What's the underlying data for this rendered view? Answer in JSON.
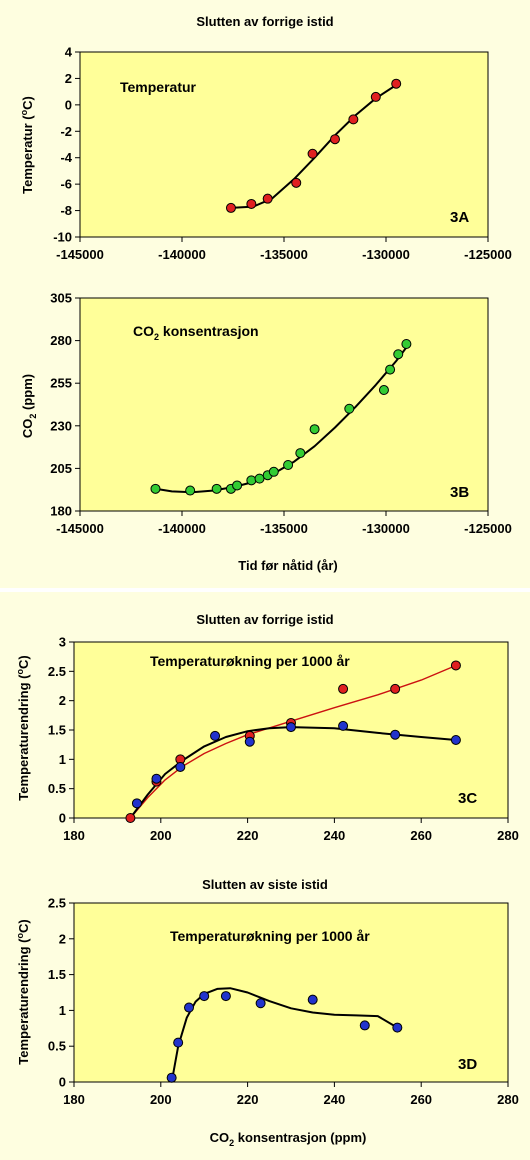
{
  "colors": {
    "background": "#fefee0",
    "plot_bg": "#ffff99",
    "red_point": "#e02020",
    "green_point": "#33cc33",
    "blue_point": "#2233cc",
    "red_line": "#cc1111",
    "black_line": "#000000"
  },
  "top_title": "Slutten av forrige istid",
  "bottom_title_c": "Slutten av forrige istid",
  "bottom_title_d": "Slutten av siste istid",
  "chart_data": [
    {
      "id": "3A",
      "type": "scatter",
      "title": "Slutten av forrige istid",
      "annotation": "Temperatur",
      "panel_label": "3A",
      "ylabel": "Temperatur (°C)",
      "xlabel": "",
      "xlim": [
        -145000,
        -125000
      ],
      "ylim": [
        -10,
        4
      ],
      "xticks": [
        -145000,
        -140000,
        -135000,
        -130000,
        -125000
      ],
      "xtick_labels": [
        "-145000",
        "-140000",
        "-135000",
        "-130000",
        "-125000"
      ],
      "yticks": [
        -10,
        -8,
        -6,
        -4,
        -2,
        0,
        2,
        4
      ],
      "ytick_labels": [
        "-10",
        "-8",
        "-6",
        "-4",
        "-2",
        "0",
        "2",
        "4"
      ],
      "points": [
        [
          -137600,
          -7.8
        ],
        [
          -136600,
          -7.5
        ],
        [
          -135800,
          -7.1
        ],
        [
          -134400,
          -5.9
        ],
        [
          -133600,
          -3.7
        ],
        [
          -132500,
          -2.6
        ],
        [
          -131600,
          -1.1
        ],
        [
          -130500,
          0.6
        ],
        [
          -129500,
          1.6
        ]
      ],
      "fit": [
        [
          -137600,
          -7.8
        ],
        [
          -136500,
          -7.7
        ],
        [
          -135600,
          -7.1
        ],
        [
          -134500,
          -5.6
        ],
        [
          -133500,
          -4.0
        ],
        [
          -132500,
          -2.3
        ],
        [
          -131500,
          -0.8
        ],
        [
          -130500,
          0.5
        ],
        [
          -129500,
          1.5
        ]
      ]
    },
    {
      "id": "3B",
      "type": "scatter",
      "annotation": "CO2 konsentrasjon",
      "panel_label": "3B",
      "ylabel": "CO2 (ppm)",
      "xlabel": "Tid før nåtid (år)",
      "xlim": [
        -145000,
        -125000
      ],
      "ylim": [
        180,
        305
      ],
      "xticks": [
        -145000,
        -140000,
        -135000,
        -130000,
        -125000
      ],
      "xtick_labels": [
        "-145000",
        "-140000",
        "-135000",
        "-130000",
        "-125000"
      ],
      "yticks": [
        180,
        205,
        230,
        255,
        280,
        305
      ],
      "ytick_labels": [
        "180",
        "205",
        "230",
        "255",
        "280",
        "305"
      ],
      "points": [
        [
          -141300,
          193
        ],
        [
          -139600,
          192
        ],
        [
          -138300,
          193
        ],
        [
          -137600,
          193
        ],
        [
          -137300,
          195
        ],
        [
          -136600,
          198
        ],
        [
          -136200,
          199
        ],
        [
          -135800,
          201
        ],
        [
          -135500,
          203
        ],
        [
          -134800,
          207
        ],
        [
          -134200,
          214
        ],
        [
          -133500,
          228
        ],
        [
          -131800,
          240
        ],
        [
          -130100,
          251
        ],
        [
          -129800,
          263
        ],
        [
          -129400,
          272
        ],
        [
          -129000,
          278
        ]
      ],
      "fit": [
        [
          -141300,
          193
        ],
        [
          -140500,
          191.5
        ],
        [
          -139500,
          191
        ],
        [
          -138500,
          192
        ],
        [
          -137500,
          194
        ],
        [
          -136500,
          197
        ],
        [
          -135500,
          202
        ],
        [
          -134500,
          209
        ],
        [
          -133500,
          218
        ],
        [
          -132500,
          229
        ],
        [
          -131500,
          241
        ],
        [
          -130500,
          254
        ],
        [
          -129500,
          268
        ],
        [
          -129000,
          276
        ]
      ]
    },
    {
      "id": "3C",
      "type": "scatter",
      "title": "Slutten av forrige istid",
      "annotation": "Temperaturøkning per 1000 år",
      "panel_label": "3C",
      "ylabel": "Temperaturendring (°C)",
      "xlabel": "",
      "xlim": [
        180,
        280
      ],
      "ylim": [
        0,
        3
      ],
      "xticks": [
        180,
        200,
        220,
        240,
        260,
        280
      ],
      "xtick_labels": [
        "180",
        "200",
        "220",
        "240",
        "260",
        "280"
      ],
      "yticks": [
        0,
        0.5,
        1,
        1.5,
        2,
        2.5,
        3
      ],
      "ytick_labels": [
        "0",
        "0.5",
        "1",
        "1.5",
        "2",
        "2.5",
        "3"
      ],
      "series": [
        {
          "color": "red",
          "points": [
            [
              193,
              0.0
            ],
            [
              199,
              0.62
            ],
            [
              204.5,
              1.0
            ],
            [
              220.5,
              1.4
            ],
            [
              230,
              1.62
            ],
            [
              242,
              2.2
            ],
            [
              254,
              2.2
            ],
            [
              268,
              2.6
            ]
          ],
          "fit": [
            [
              193,
              0.0
            ],
            [
              197,
              0.35
            ],
            [
              201,
              0.65
            ],
            [
              205,
              0.88
            ],
            [
              210,
              1.1
            ],
            [
              215,
              1.27
            ],
            [
              220,
              1.42
            ],
            [
              230,
              1.65
            ],
            [
              240,
              1.88
            ],
            [
              250,
              2.1
            ],
            [
              260,
              2.35
            ],
            [
              268,
              2.6
            ]
          ]
        },
        {
          "color": "blue",
          "points": [
            [
              194.5,
              0.25
            ],
            [
              199,
              0.67
            ],
            [
              204.5,
              0.87
            ],
            [
              212.5,
              1.4
            ],
            [
              220.5,
              1.3
            ],
            [
              230,
              1.55
            ],
            [
              242,
              1.57
            ],
            [
              254,
              1.42
            ],
            [
              268,
              1.33
            ]
          ],
          "fit": [
            [
              193,
              0.0
            ],
            [
              197,
              0.4
            ],
            [
              201,
              0.75
            ],
            [
              205,
              0.98
            ],
            [
              210,
              1.22
            ],
            [
              215,
              1.38
            ],
            [
              220,
              1.48
            ],
            [
              225,
              1.53
            ],
            [
              230,
              1.55
            ],
            [
              240,
              1.53
            ],
            [
              250,
              1.45
            ],
            [
              260,
              1.38
            ],
            [
              268,
              1.33
            ]
          ]
        }
      ]
    },
    {
      "id": "3D",
      "type": "scatter",
      "title": "Slutten av siste istid",
      "annotation": "Temperaturøkning per 1000 år",
      "panel_label": "3D",
      "ylabel": "Temperaturendring (°C)",
      "xlabel": "CO2 konsentrasjon (ppm)",
      "xlim": [
        180,
        280
      ],
      "ylim": [
        0,
        2.5
      ],
      "xticks": [
        180,
        200,
        220,
        240,
        260,
        280
      ],
      "xtick_labels": [
        "180",
        "200",
        "220",
        "240",
        "260",
        "280"
      ],
      "yticks": [
        0,
        0.5,
        1,
        1.5,
        2,
        2.5
      ],
      "ytick_labels": [
        "0",
        "0.5",
        "1",
        "1.5",
        "2",
        "2.5"
      ],
      "points": [
        [
          202.5,
          0.06
        ],
        [
          204,
          0.55
        ],
        [
          206.5,
          1.04
        ],
        [
          210,
          1.2
        ],
        [
          215,
          1.2
        ],
        [
          223,
          1.1
        ],
        [
          235,
          1.15
        ],
        [
          247,
          0.79
        ],
        [
          254.5,
          0.76
        ]
      ],
      "fit": [
        [
          202.5,
          0.0
        ],
        [
          204,
          0.5
        ],
        [
          206,
          0.9
        ],
        [
          208,
          1.12
        ],
        [
          210,
          1.23
        ],
        [
          213,
          1.3
        ],
        [
          216,
          1.31
        ],
        [
          220,
          1.25
        ],
        [
          225,
          1.13
        ],
        [
          230,
          1.03
        ],
        [
          235,
          0.97
        ],
        [
          240,
          0.94
        ],
        [
          245,
          0.93
        ],
        [
          250,
          0.92
        ],
        [
          254.5,
          0.76
        ]
      ]
    }
  ]
}
